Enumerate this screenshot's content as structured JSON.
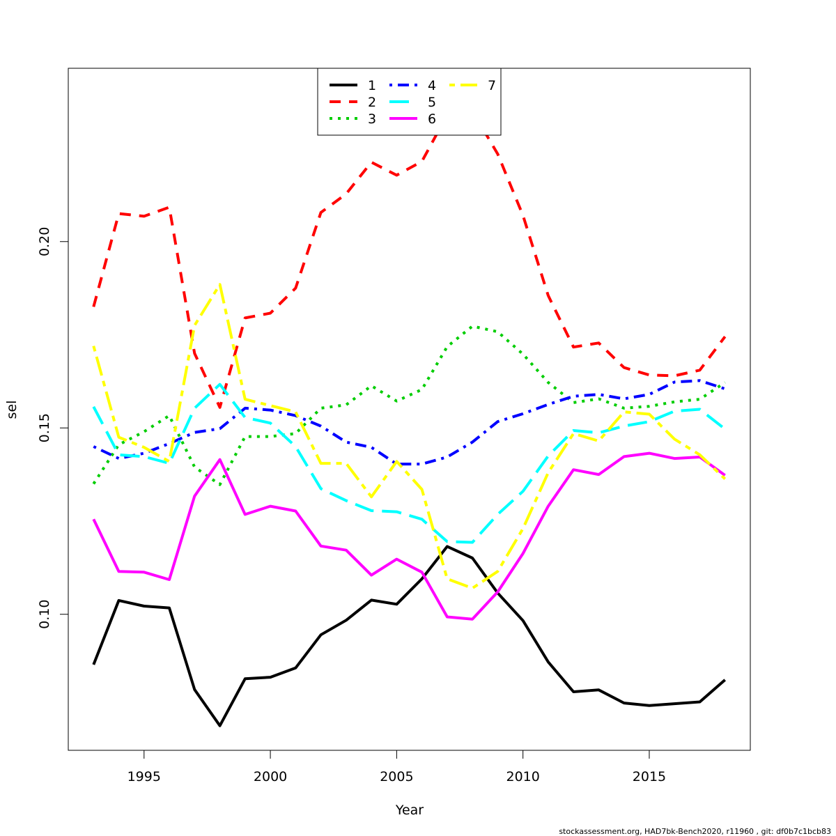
{
  "chart_data": {
    "type": "line",
    "xlabel": "Year",
    "ylabel": "sel",
    "xlim": [
      1992,
      2019
    ],
    "ylim": [
      0.0635,
      0.2465
    ],
    "x_ticks": [
      1995,
      2000,
      2005,
      2010,
      2015
    ],
    "x_tick_labels": [
      "1995",
      "2000",
      "2005",
      "2010",
      "2015"
    ],
    "y_ticks": [
      0.1,
      0.15,
      0.2
    ],
    "y_tick_labels": [
      "0.10",
      "0.15",
      "0.20"
    ],
    "grid": false,
    "legend_position": "top-center",
    "x": [
      1993,
      1994,
      1995,
      1996,
      1997,
      1998,
      1999,
      2000,
      2001,
      2002,
      2003,
      2004,
      2005,
      2006,
      2007,
      2008,
      2009,
      2010,
      2011,
      2012,
      2013,
      2014,
      2015,
      2016,
      2017,
      2018
    ],
    "series": [
      {
        "name": "1",
        "color": "#000000",
        "dash": "solid",
        "values": [
          0.0865,
          0.1037,
          0.1022,
          0.1017,
          0.0798,
          0.0701,
          0.0827,
          0.0831,
          0.0856,
          0.0945,
          0.0984,
          0.1038,
          0.1027,
          0.1095,
          0.1182,
          0.1151,
          0.1057,
          0.0983,
          0.0872,
          0.0792,
          0.0797,
          0.0762,
          0.0755,
          0.076,
          0.0765,
          0.0824
        ]
      },
      {
        "name": "2",
        "color": "#ff0000",
        "dash": "dashed",
        "values": [
          0.1825,
          0.2075,
          0.2068,
          0.2092,
          0.17,
          0.1555,
          0.1795,
          0.1808,
          0.1875,
          0.2078,
          0.2128,
          0.2213,
          0.2178,
          0.2215,
          0.234,
          0.235,
          0.2235,
          0.207,
          0.1855,
          0.1717,
          0.1728,
          0.1662,
          0.1642,
          0.164,
          0.1655,
          0.1745
        ]
      },
      {
        "name": "3",
        "color": "#00cd00",
        "dash": "dotted",
        "values": [
          0.135,
          0.1455,
          0.149,
          0.1533,
          0.1395,
          0.1348,
          0.1477,
          0.1477,
          0.1485,
          0.1553,
          0.1562,
          0.1613,
          0.1572,
          0.1603,
          0.1718,
          0.1773,
          0.1758,
          0.1698,
          0.1622,
          0.1568,
          0.1578,
          0.1553,
          0.1558,
          0.157,
          0.1577,
          0.1622
        ]
      },
      {
        "name": "4",
        "color": "#0000ff",
        "dash": "dotdash",
        "values": [
          0.145,
          0.1418,
          0.1432,
          0.1458,
          0.1488,
          0.1498,
          0.1553,
          0.1548,
          0.1533,
          0.1505,
          0.1462,
          0.1448,
          0.1403,
          0.1403,
          0.1422,
          0.1462,
          0.1517,
          0.1538,
          0.1563,
          0.1585,
          0.159,
          0.1578,
          0.159,
          0.1623,
          0.1627,
          0.1605
        ]
      },
      {
        "name": "5",
        "color": "#00ffff",
        "dash": "longdash",
        "values": [
          0.1557,
          0.1428,
          0.1423,
          0.1405,
          0.1553,
          0.1617,
          0.1528,
          0.1513,
          0.145,
          0.1337,
          0.1305,
          0.1278,
          0.1275,
          0.1255,
          0.1195,
          0.1193,
          0.1268,
          0.133,
          0.1425,
          0.1493,
          0.1487,
          0.1505,
          0.1517,
          0.1545,
          0.155,
          0.1497
        ]
      },
      {
        "name": "6",
        "color": "#ff00ff",
        "dash": "solid",
        "values": [
          0.1255,
          0.1115,
          0.1113,
          0.1093,
          0.1317,
          0.1415,
          0.1268,
          0.129,
          0.1277,
          0.1183,
          0.1172,
          0.1105,
          0.1148,
          0.1113,
          0.0993,
          0.0987,
          0.106,
          0.1163,
          0.129,
          0.1388,
          0.1375,
          0.1423,
          0.1432,
          0.1418,
          0.1422,
          0.1373
        ]
      },
      {
        "name": "7",
        "color": "#ffff00",
        "dash": "twodash",
        "values": [
          0.172,
          0.1475,
          0.1448,
          0.141,
          0.1775,
          0.1885,
          0.1577,
          0.156,
          0.1543,
          0.1405,
          0.1405,
          0.1315,
          0.141,
          0.1335,
          0.1095,
          0.107,
          0.1115,
          0.123,
          0.138,
          0.1485,
          0.1465,
          0.1543,
          0.1537,
          0.147,
          0.1428,
          0.1363
        ]
      }
    ]
  },
  "footer": "stockassessment.org, HAD7bk-Bench2020, r11960 , git: df0b7c1bcb83"
}
